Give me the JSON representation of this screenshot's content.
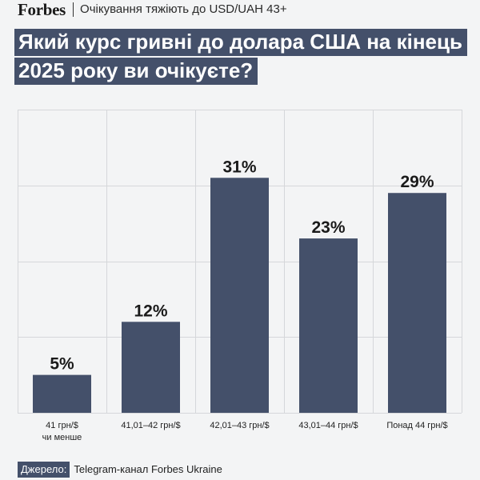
{
  "header": {
    "logo": "Forbes",
    "subtitle": "Очікування тяжіють до USD/UAH 43+"
  },
  "title": "Який курс гривні до долара США на кінець 2025 року ви очікуєте?",
  "source": {
    "label": "Джерело:",
    "text": "Telegram-канал Forbes Ukraine"
  },
  "colors": {
    "bar": "#44506a",
    "grid": "#d5d7da",
    "background": "#f3f4f5"
  },
  "chart_data": {
    "type": "bar",
    "categories": [
      [
        "41 грн/$",
        "чи менше"
      ],
      [
        "41,01–42 грн/$"
      ],
      [
        "42,01–43 грн/$"
      ],
      [
        "43,01–44 грн/$"
      ],
      [
        "Понад 44 грн/$"
      ]
    ],
    "values": [
      5,
      12,
      31,
      23,
      29
    ],
    "data_labels": [
      "5%",
      "12%",
      "31%",
      "23%",
      "29%"
    ],
    "ylim": [
      0,
      40
    ],
    "grid": true,
    "title": "",
    "xlabel": "",
    "ylabel": ""
  }
}
